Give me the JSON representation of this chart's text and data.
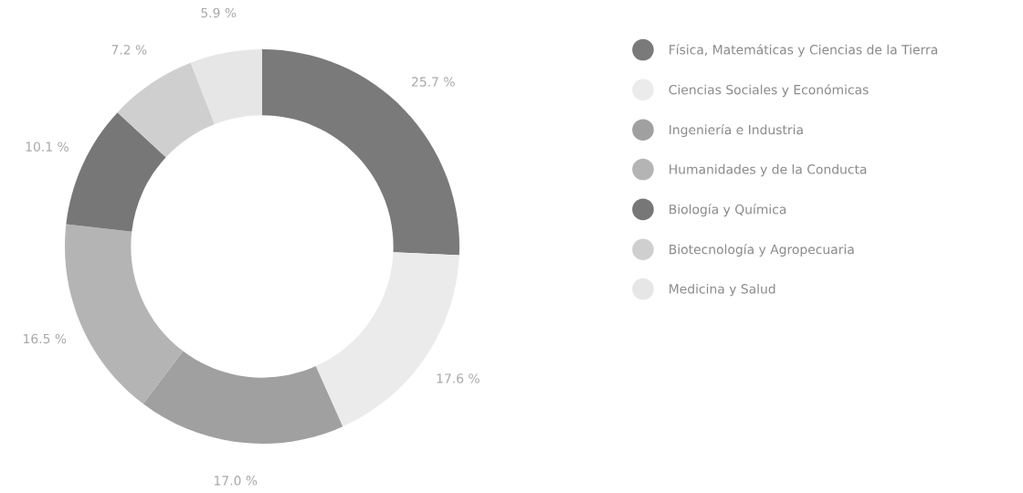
{
  "chart_data": {
    "type": "donut",
    "categories": [
      "Física, Matemáticas y Ciencias de la Tierra",
      "Ciencias Sociales y Económicas",
      "Ingeniería e Industria",
      "Humanidades y de la Conducta",
      "Biología y Química",
      "Biotecnología y Agropecuaria",
      "Medicina y Salud"
    ],
    "values": [
      25.7,
      17.6,
      17.0,
      16.5,
      10.1,
      7.2,
      5.9
    ],
    "colors": [
      "#7a7a7a",
      "#ebebeb",
      "#a0a0a0",
      "#b4b4b4",
      "#777777",
      "#cfcfcf",
      "#e6e6e6"
    ],
    "value_labels": [
      "25.7 %",
      "17.6 %",
      "17.0 %",
      "16.5 %",
      "10.1 %",
      "7.2 %",
      "5.9 %"
    ],
    "legend": "right"
  }
}
